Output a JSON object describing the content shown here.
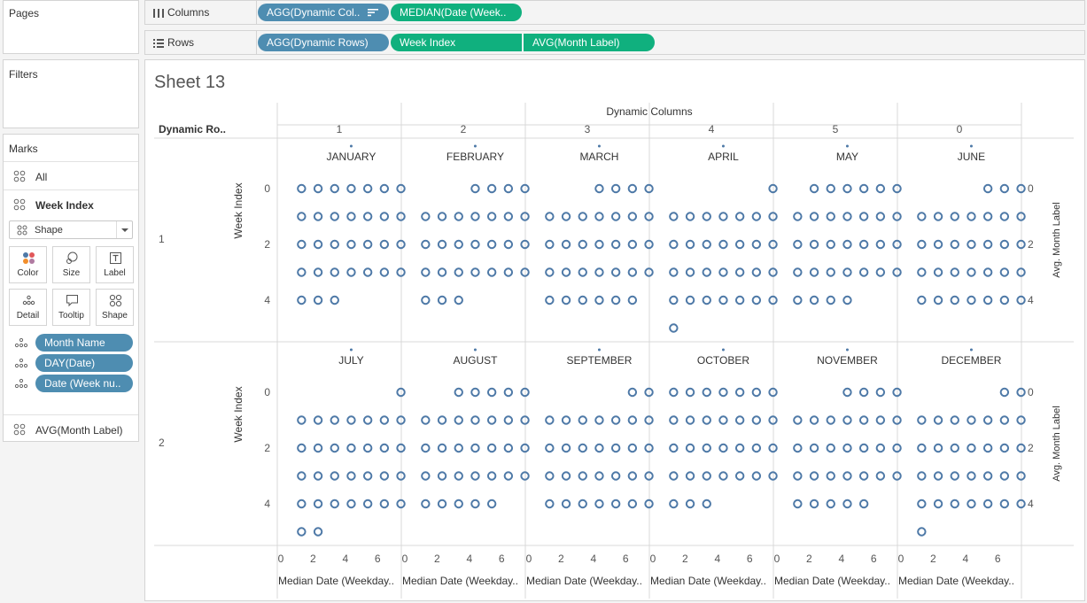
{
  "left_panel": {
    "pages_title": "Pages",
    "filters_title": "Filters",
    "marks": {
      "title": "Marks",
      "all_label": "All",
      "selected_label": "Week Index",
      "mark_type": "Shape",
      "buttons": {
        "color": "Color",
        "size": "Size",
        "label": "Label",
        "detail": "Detail",
        "tooltip": "Tooltip",
        "shape": "Shape"
      },
      "fields": [
        "Month Name",
        "DAY(Date)",
        "Date (Week nu.."
      ],
      "avg_label": "AVG(Month Label)"
    }
  },
  "shelves": {
    "columns_label": "Columns",
    "rows_label": "Rows",
    "columns_pills": [
      "AGG(Dynamic Col..",
      "MEDIAN(Date (Week.."
    ],
    "rows_pills": [
      "AGG(Dynamic Rows)",
      "Week Index",
      "AVG(Month Label)"
    ]
  },
  "sheet": {
    "title": "Sheet 13",
    "top_header": "Dynamic Columns",
    "row_header": "Dynamic Ro..",
    "column_values": [
      "1",
      "2",
      "3",
      "4",
      "5",
      "0"
    ],
    "row_values": [
      "1",
      "2"
    ],
    "y_axis_title": "Week Index",
    "y2_axis_title": "Avg. Month Label",
    "x_axis_title": "Median Date (Weekday..",
    "x_ticks": [
      "0",
      "2",
      "4",
      "6"
    ],
    "y_ticks": [
      "0",
      "2",
      "4"
    ]
  },
  "colors": {
    "mark": "#4e79a7",
    "pill_blue": "#4e8db1",
    "pill_green": "#10b07e",
    "grid": "#d9d9d9"
  },
  "chart_data": {
    "type": "scatter",
    "x_axis": {
      "label": "Median Date (Weekday..",
      "ticks": [
        0,
        2,
        4,
        6
      ],
      "range": [
        0,
        7
      ]
    },
    "y_axis": {
      "label": "Week Index",
      "ticks": [
        0,
        2,
        4
      ],
      "range": [
        0,
        5
      ],
      "reversed": true
    },
    "y2_axis": {
      "label": "Avg. Month Label",
      "ticks": [
        0,
        2,
        4
      ]
    },
    "panels": [
      {
        "row": "1",
        "col": "1",
        "month": "JANUARY",
        "weeks": [
          [
            1,
            7
          ],
          [
            1,
            7
          ],
          [
            1,
            7
          ],
          [
            1,
            7
          ],
          [
            1,
            3
          ]
        ]
      },
      {
        "row": "1",
        "col": "2",
        "month": "FEBRUARY",
        "weeks": [
          [
            4,
            7
          ],
          [
            1,
            7
          ],
          [
            1,
            7
          ],
          [
            1,
            7
          ],
          [
            1,
            3
          ]
        ]
      },
      {
        "row": "1",
        "col": "3",
        "month": "MARCH",
        "weeks": [
          [
            4,
            7
          ],
          [
            1,
            7
          ],
          [
            1,
            7
          ],
          [
            1,
            7
          ],
          [
            1,
            6
          ]
        ]
      },
      {
        "row": "1",
        "col": "4",
        "month": "APRIL",
        "weeks": [
          [
            7,
            7
          ],
          [
            1,
            7
          ],
          [
            1,
            7
          ],
          [
            1,
            7
          ],
          [
            1,
            7
          ],
          [
            1,
            1
          ]
        ]
      },
      {
        "row": "1",
        "col": "5",
        "month": "MAY",
        "weeks": [
          [
            2,
            7
          ],
          [
            1,
            7
          ],
          [
            1,
            7
          ],
          [
            1,
            7
          ],
          [
            1,
            4
          ]
        ]
      },
      {
        "row": "1",
        "col": "0",
        "month": "JUNE",
        "weeks": [
          [
            5,
            7
          ],
          [
            1,
            7
          ],
          [
            1,
            7
          ],
          [
            1,
            7
          ],
          [
            1,
            7
          ]
        ]
      },
      {
        "row": "2",
        "col": "1",
        "month": "JULY",
        "weeks": [
          [
            7,
            7
          ],
          [
            1,
            7
          ],
          [
            1,
            7
          ],
          [
            1,
            7
          ],
          [
            1,
            7
          ],
          [
            1,
            2
          ]
        ]
      },
      {
        "row": "2",
        "col": "2",
        "month": "AUGUST",
        "weeks": [
          [
            3,
            7
          ],
          [
            1,
            7
          ],
          [
            1,
            7
          ],
          [
            1,
            7
          ],
          [
            1,
            5
          ]
        ]
      },
      {
        "row": "2",
        "col": "3",
        "month": "SEPTEMBER",
        "weeks": [
          [
            6,
            7
          ],
          [
            1,
            7
          ],
          [
            1,
            7
          ],
          [
            1,
            7
          ],
          [
            1,
            7
          ]
        ]
      },
      {
        "row": "2",
        "col": "4",
        "month": "OCTOBER",
        "weeks": [
          [
            1,
            7
          ],
          [
            1,
            7
          ],
          [
            1,
            7
          ],
          [
            1,
            7
          ],
          [
            1,
            3
          ]
        ]
      },
      {
        "row": "2",
        "col": "5",
        "month": "NOVEMBER",
        "weeks": [
          [
            4,
            7
          ],
          [
            1,
            7
          ],
          [
            1,
            7
          ],
          [
            1,
            7
          ],
          [
            1,
            5
          ]
        ]
      },
      {
        "row": "2",
        "col": "0",
        "month": "DECEMBER",
        "weeks": [
          [
            6,
            7
          ],
          [
            1,
            7
          ],
          [
            1,
            7
          ],
          [
            1,
            7
          ],
          [
            1,
            7
          ],
          [
            1,
            1
          ]
        ]
      }
    ]
  }
}
